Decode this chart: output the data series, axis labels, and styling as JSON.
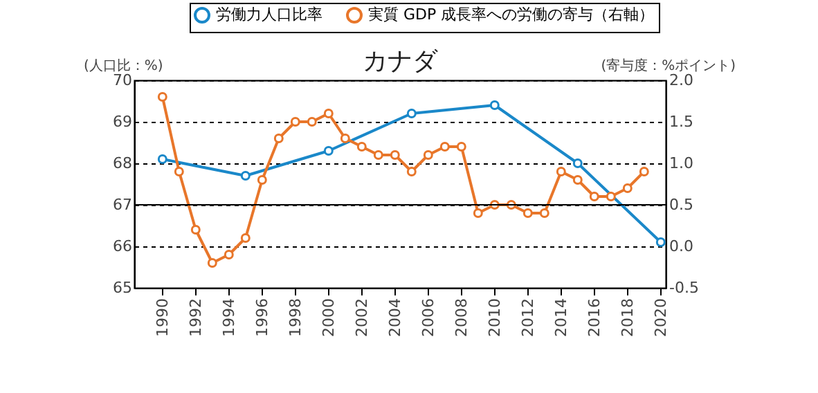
{
  "chart_data": {
    "type": "line",
    "title": "カナダ",
    "ylabel": "(人口比：%)",
    "y2label": "(寄与度：%ポイント)",
    "xlim": [
      1988.3,
      2020.3
    ],
    "xticks": [
      1990,
      1992,
      1994,
      1996,
      1998,
      2000,
      2002,
      2004,
      2006,
      2008,
      2010,
      2012,
      2014,
      2016,
      2018,
      2020
    ],
    "ylim": [
      65,
      70
    ],
    "yticks": [
      65,
      66,
      67,
      68,
      69,
      70
    ],
    "y2lim": [
      -0.5,
      2
    ],
    "y2ticks": [
      {
        "value": -0.5,
        "label": "-0.5"
      },
      {
        "value": 0,
        "label": "0.0"
      },
      {
        "value": 0.5,
        "label": "0.5"
      },
      {
        "value": 1,
        "label": "1.0"
      },
      {
        "value": 1.5,
        "label": "1.5"
      },
      {
        "value": 2,
        "label": "2.0"
      }
    ],
    "grid": "y",
    "legend": "top",
    "marker": "circle",
    "line_style": "solid",
    "ref_lines": [
      {
        "axis": "y",
        "value": 67,
        "color": "#000000",
        "line_style": "solid"
      }
    ],
    "series": [
      {
        "name": "労働力人口比率",
        "color": "#1a88c9",
        "x": [
          1990,
          1995,
          2000,
          2005,
          2010,
          2015,
          2020
        ],
        "values": [
          68.1,
          67.7,
          68.3,
          69.2,
          69.4,
          68.0,
          66.1
        ]
      },
      {
        "name": "実質 GDP 成長率への労働の寄与（右軸）",
        "color": "#e8762a",
        "axis": "y2",
        "x": [
          1990,
          1991,
          1992,
          1993,
          1994,
          1995,
          1996,
          1997,
          1998,
          1999,
          2000,
          2001,
          2002,
          2003,
          2004,
          2005,
          2006,
          2007,
          2008,
          2009,
          2010,
          2011,
          2012,
          2013,
          2014,
          2015,
          2016,
          2017,
          2018,
          2019
        ],
        "values": [
          1.8,
          0.9,
          0.2,
          -0.2,
          -0.1,
          0.1,
          0.8,
          1.3,
          1.5,
          1.5,
          1.6,
          1.3,
          1.2,
          1.1,
          1.1,
          0.9,
          1.1,
          1.2,
          1.2,
          0.4,
          0.5,
          0.5,
          0.4,
          0.4,
          0.9,
          0.8,
          0.6,
          0.6,
          0.7,
          0.9
        ]
      }
    ]
  }
}
